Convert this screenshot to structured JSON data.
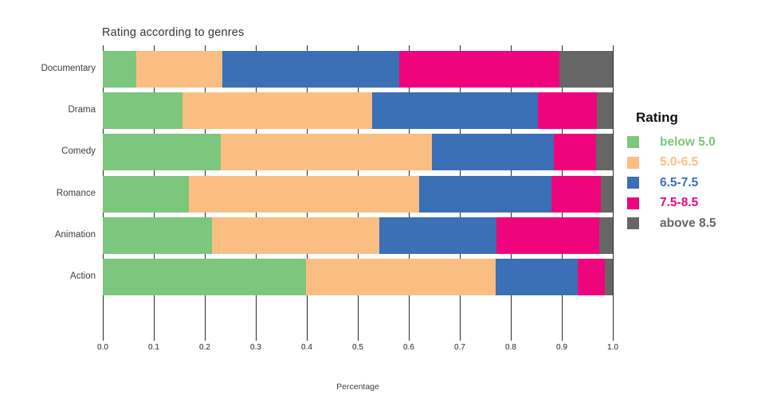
{
  "chart_data": {
    "type": "bar",
    "orientation": "horizontal",
    "stacked": true,
    "title": "Rating according to genres",
    "xlabel": "Percentage",
    "ylabel": "",
    "xlim": [
      0.0,
      1.0
    ],
    "x_tick_labels": [
      "0.0",
      "0.1",
      "0.2",
      "0.3",
      "0.4",
      "0.5",
      "0.6",
      "0.7",
      "0.8",
      "0.9",
      "1.0"
    ],
    "categories": [
      "Documentary",
      "Drama",
      "Comedy",
      "Romance",
      "Animation",
      "Action"
    ],
    "series": [
      {
        "name": "below 5.0",
        "color": "#7CC67E",
        "values": [
          0.065,
          0.156,
          0.231,
          0.169,
          0.214,
          0.399
        ]
      },
      {
        "name": "5.0-6.5",
        "color": "#FBBE82",
        "values": [
          0.17,
          0.372,
          0.414,
          0.451,
          0.328,
          0.371
        ]
      },
      {
        "name": "6.5-7.5",
        "color": "#3B6FB6",
        "values": [
          0.347,
          0.325,
          0.24,
          0.259,
          0.23,
          0.161
        ]
      },
      {
        "name": "7.5-8.5",
        "color": "#F0047E",
        "values": [
          0.314,
          0.116,
          0.083,
          0.098,
          0.201,
          0.054
        ]
      },
      {
        "name": "above 8.5",
        "color": "#666666",
        "values": [
          0.104,
          0.031,
          0.032,
          0.023,
          0.027,
          0.015
        ]
      }
    ],
    "legend": {
      "title": "Rating",
      "position": "right"
    },
    "grid": "vertical dark gridlines at 0.1 intervals, drawn behind bars",
    "colors": {
      "background": "#FFFFFF",
      "gridline": "#2B2B2B",
      "title_text": "#353535",
      "axis_text": "#3D3D3D",
      "tick_text": "#262626"
    }
  }
}
